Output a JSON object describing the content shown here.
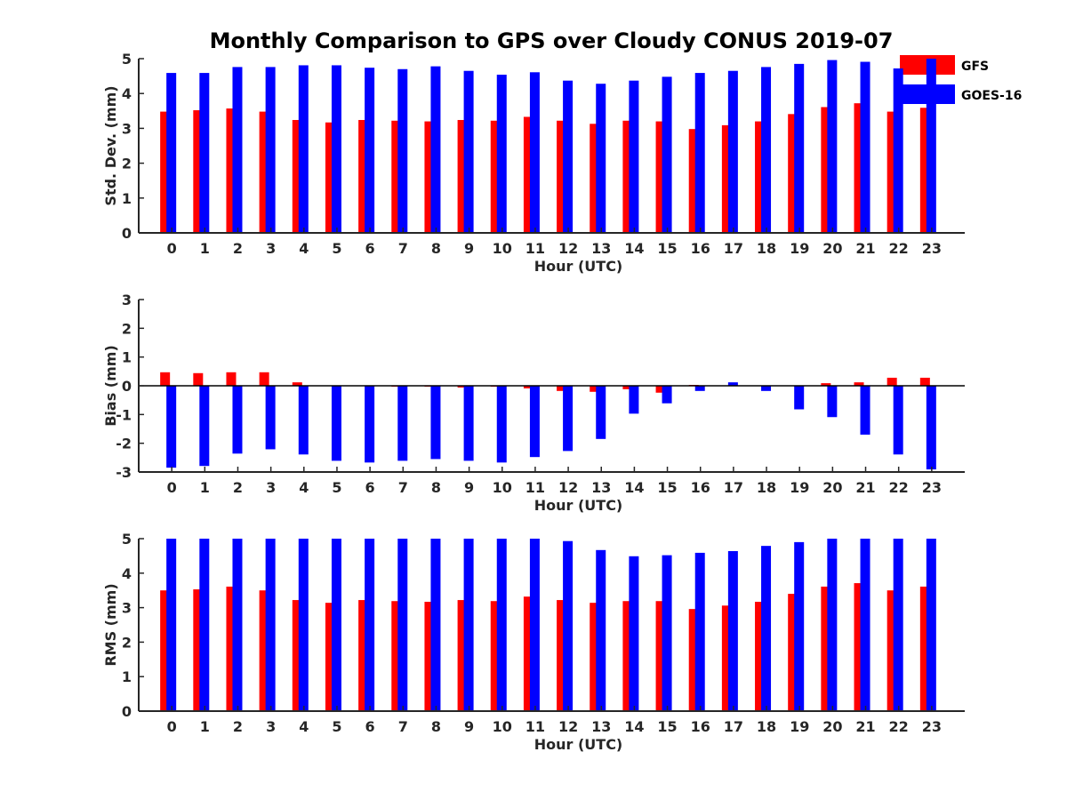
{
  "title": "Monthly Comparison to GPS over Cloudy CONUS 2019-07",
  "legend": {
    "placement": "top-right",
    "entries": [
      {
        "name": "GFS",
        "color": "#ff0000"
      },
      {
        "name": "GOES-16",
        "color": "#0000ff"
      }
    ]
  },
  "chart_data": [
    {
      "type": "bar",
      "ylabel": "Std. Dev. (mm)",
      "xlabel": "Hour (UTC)",
      "categories": [
        "0",
        "1",
        "2",
        "3",
        "4",
        "5",
        "6",
        "7",
        "8",
        "9",
        "10",
        "11",
        "12",
        "13",
        "14",
        "15",
        "16",
        "17",
        "18",
        "19",
        "20",
        "21",
        "22",
        "23"
      ],
      "ylim": [
        0,
        5
      ],
      "yticks": [
        "0",
        "1",
        "2",
        "3",
        "4",
        "5"
      ],
      "series": [
        {
          "name": "GFS",
          "color": "#ff0000",
          "values": [
            3.48,
            3.52,
            3.57,
            3.48,
            3.24,
            3.17,
            3.24,
            3.22,
            3.2,
            3.24,
            3.22,
            3.33,
            3.22,
            3.13,
            3.22,
            3.2,
            2.98,
            3.09,
            3.2,
            3.41,
            3.61,
            3.72,
            3.48,
            3.59
          ]
        },
        {
          "name": "GOES-16",
          "color": "#0000ff",
          "values": [
            4.59,
            4.59,
            4.76,
            4.76,
            4.81,
            4.81,
            4.74,
            4.7,
            4.78,
            4.65,
            4.54,
            4.61,
            4.37,
            4.28,
            4.37,
            4.48,
            4.59,
            4.65,
            4.76,
            4.85,
            4.96,
            4.91,
            4.72,
            5.0
          ]
        }
      ]
    },
    {
      "type": "bar",
      "ylabel": "Bias (mm)",
      "xlabel": "Hour (UTC)",
      "categories": [
        "0",
        "1",
        "2",
        "3",
        "4",
        "5",
        "6",
        "7",
        "8",
        "9",
        "10",
        "11",
        "12",
        "13",
        "14",
        "15",
        "16",
        "17",
        "18",
        "19",
        "20",
        "21",
        "22",
        "23"
      ],
      "ylim": [
        -3,
        3
      ],
      "yticks": [
        "-3",
        "-2",
        "-1",
        "0",
        "1",
        "2",
        "3"
      ],
      "series": [
        {
          "name": "GFS",
          "color": "#ff0000",
          "values": [
            0.47,
            0.44,
            0.47,
            0.47,
            0.12,
            0.0,
            0.0,
            -0.03,
            -0.03,
            -0.06,
            -0.03,
            -0.09,
            -0.18,
            -0.21,
            -0.12,
            -0.24,
            0.03,
            0.0,
            0.0,
            0.0,
            0.09,
            0.12,
            0.28,
            0.28
          ]
        },
        {
          "name": "GOES-16",
          "color": "#0000ff",
          "values": [
            -2.85,
            -2.79,
            -2.36,
            -2.21,
            -2.39,
            -2.61,
            -2.67,
            -2.61,
            -2.55,
            -2.61,
            -2.67,
            -2.48,
            -2.27,
            -1.85,
            -0.97,
            -0.61,
            -0.18,
            0.12,
            -0.18,
            -0.82,
            -1.09,
            -1.7,
            -2.39,
            -2.91
          ]
        }
      ]
    },
    {
      "type": "bar",
      "ylabel": "RMS (mm)",
      "xlabel": "Hour (UTC)",
      "categories": [
        "0",
        "1",
        "2",
        "3",
        "4",
        "5",
        "6",
        "7",
        "8",
        "9",
        "10",
        "11",
        "12",
        "13",
        "14",
        "15",
        "16",
        "17",
        "18",
        "19",
        "20",
        "21",
        "22",
        "23"
      ],
      "ylim": [
        0,
        5
      ],
      "yticks": [
        "0",
        "1",
        "2",
        "3",
        "4",
        "5"
      ],
      "series": [
        {
          "name": "GFS",
          "color": "#ff0000",
          "values": [
            3.5,
            3.53,
            3.61,
            3.5,
            3.22,
            3.14,
            3.22,
            3.19,
            3.17,
            3.22,
            3.19,
            3.32,
            3.22,
            3.14,
            3.19,
            3.19,
            2.96,
            3.06,
            3.17,
            3.4,
            3.61,
            3.71,
            3.5,
            3.61
          ]
        },
        {
          "name": "GOES-16",
          "color": "#0000ff",
          "values": [
            5.0,
            5.0,
            5.0,
            5.0,
            5.0,
            5.0,
            5.0,
            5.0,
            5.0,
            5.0,
            5.0,
            5.0,
            4.93,
            4.67,
            4.49,
            4.52,
            4.59,
            4.64,
            4.79,
            4.9,
            5.0,
            5.0,
            5.0,
            5.0
          ]
        }
      ]
    }
  ]
}
